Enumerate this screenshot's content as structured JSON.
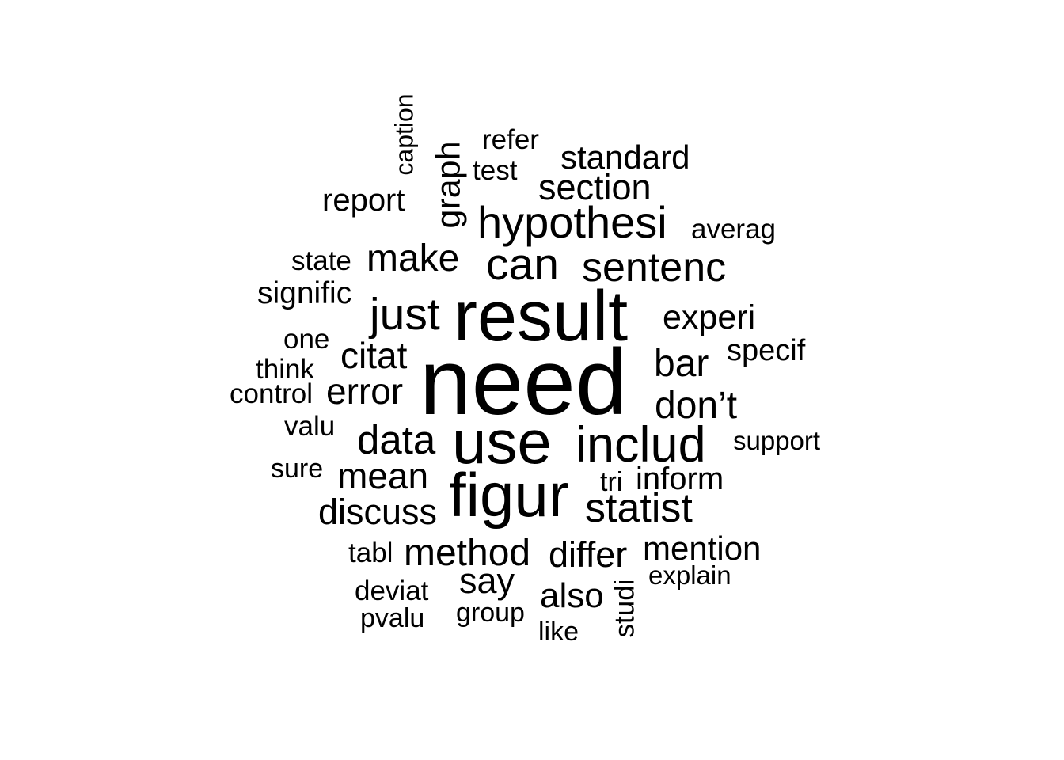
{
  "cloud": {
    "text_color": "#000000",
    "background": "#ffffff",
    "words": [
      {
        "text": "need"
      },
      {
        "text": "result"
      },
      {
        "text": "use"
      },
      {
        "text": "figur"
      },
      {
        "text": "includ"
      },
      {
        "text": "hypothesi"
      },
      {
        "text": "can"
      },
      {
        "text": "sentenc"
      },
      {
        "text": "just"
      },
      {
        "text": "make"
      },
      {
        "text": "data"
      },
      {
        "text": "statist"
      },
      {
        "text": "don’t"
      },
      {
        "text": "bar"
      },
      {
        "text": "section"
      },
      {
        "text": "standard"
      },
      {
        "text": "method"
      },
      {
        "text": "differ"
      },
      {
        "text": "citat"
      },
      {
        "text": "error"
      },
      {
        "text": "mean"
      },
      {
        "text": "discuss"
      },
      {
        "text": "experi"
      },
      {
        "text": "mention"
      },
      {
        "text": "graph"
      },
      {
        "text": "report"
      },
      {
        "text": "inform"
      },
      {
        "text": "say"
      },
      {
        "text": "also"
      },
      {
        "text": "specif"
      },
      {
        "text": "signific"
      },
      {
        "text": "test"
      },
      {
        "text": "refer"
      },
      {
        "text": "averag"
      },
      {
        "text": "state"
      },
      {
        "text": "one"
      },
      {
        "text": "think"
      },
      {
        "text": "control"
      },
      {
        "text": "valu"
      },
      {
        "text": "sure"
      },
      {
        "text": "support"
      },
      {
        "text": "tri"
      },
      {
        "text": "tabl"
      },
      {
        "text": "deviat"
      },
      {
        "text": "pvalu"
      },
      {
        "text": "group"
      },
      {
        "text": "like"
      },
      {
        "text": "studi"
      },
      {
        "text": "explain"
      },
      {
        "text": "caption"
      }
    ]
  }
}
